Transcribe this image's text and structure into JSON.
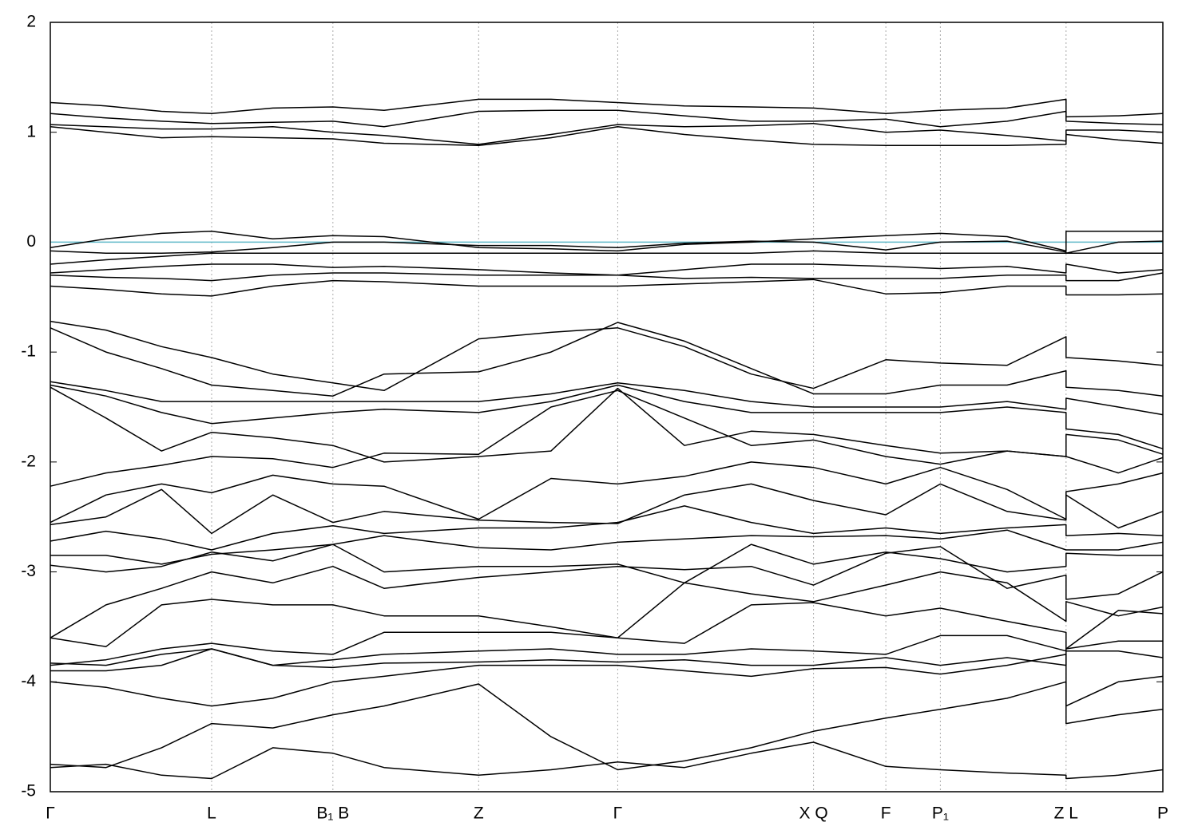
{
  "chart_data": {
    "type": "line",
    "x": [
      0,
      0.05,
      0.1,
      0.145,
      0.2,
      0.254,
      0.3,
      0.385,
      0.45,
      0.51,
      0.57,
      0.63,
      0.686,
      0.751,
      0.8,
      0.86,
      0.913,
      0.913,
      0.96,
      1
    ],
    "xlim": [
      0,
      1
    ],
    "xticks": [
      {
        "value": 0,
        "label": "Γ"
      },
      {
        "value": 0.145,
        "label": "L"
      },
      {
        "value": 0.254,
        "label": "B₁ B"
      },
      {
        "value": 0.385,
        "label": "Z"
      },
      {
        "value": 0.51,
        "label": "Γ"
      },
      {
        "value": 0.686,
        "label": "X Q"
      },
      {
        "value": 0.751,
        "label": "F"
      },
      {
        "value": 0.8,
        "label": "P₁"
      },
      {
        "value": 0.913,
        "label": "Z L"
      },
      {
        "value": 1,
        "label": "P"
      }
    ],
    "ylim": [
      -5,
      2
    ],
    "yticks": [
      -5,
      -4,
      -3,
      -2,
      -1,
      0,
      1,
      2
    ],
    "grid": "x",
    "fermi_level": 0,
    "fermi_color": "#5fb8c8",
    "color": "#000000",
    "series": [
      {
        "values": [
          1.27,
          1.24,
          1.19,
          1.17,
          1.22,
          1.23,
          1.2,
          1.3,
          1.3,
          1.27,
          1.24,
          1.23,
          1.22,
          1.17,
          1.2,
          1.22,
          1.3,
          1.14,
          1.15,
          1.17
        ]
      },
      {
        "values": [
          1.17,
          1.13,
          1.1,
          1.08,
          1.09,
          1.1,
          1.05,
          1.19,
          1.2,
          1.2,
          1.15,
          1.1,
          1.1,
          1.12,
          1.05,
          1.1,
          1.19,
          1.1,
          1.08,
          1.07
        ]
      },
      {
        "values": [
          1.07,
          1.05,
          1.03,
          1.03,
          1.05,
          1.0,
          0.97,
          0.89,
          0.98,
          1.07,
          1.05,
          1.06,
          1.08,
          1.0,
          1.02,
          0.97,
          0.92,
          1.02,
          1.02,
          1.0
        ]
      },
      {
        "values": [
          1.05,
          1.0,
          0.95,
          0.96,
          0.95,
          0.94,
          0.9,
          0.88,
          0.95,
          1.05,
          0.98,
          0.93,
          0.89,
          0.88,
          0.88,
          0.88,
          0.89,
          0.98,
          0.93,
          0.9
        ]
      },
      {
        "values": [
          -0.05,
          0.03,
          0.08,
          0.1,
          0.03,
          0.06,
          0.05,
          -0.05,
          -0.06,
          -0.08,
          -0.02,
          0.0,
          0.03,
          0.06,
          0.08,
          0.05,
          -0.08,
          0.1,
          0.1,
          0.1
        ]
      },
      {
        "values": [
          -0.08,
          -0.1,
          -0.1,
          -0.09,
          -0.05,
          0.0,
          0.0,
          -0.03,
          -0.03,
          -0.05,
          -0.01,
          0.01,
          0.0,
          -0.07,
          0.0,
          0.01,
          -0.09,
          -0.1,
          0.0,
          0.01
        ]
      },
      {
        "values": [
          -0.2,
          -0.16,
          -0.13,
          -0.1,
          -0.1,
          -0.1,
          -0.1,
          -0.1,
          -0.1,
          -0.1,
          -0.1,
          -0.1,
          -0.08,
          -0.1,
          -0.1,
          -0.1,
          -0.1,
          -0.1,
          -0.1,
          -0.1
        ]
      },
      {
        "values": [
          -0.28,
          -0.25,
          -0.22,
          -0.2,
          -0.2,
          -0.23,
          -0.22,
          -0.25,
          -0.28,
          -0.3,
          -0.25,
          -0.2,
          -0.2,
          -0.22,
          -0.24,
          -0.22,
          -0.28,
          -0.2,
          -0.28,
          -0.25
        ]
      },
      {
        "values": [
          -0.3,
          -0.32,
          -0.33,
          -0.35,
          -0.3,
          -0.28,
          -0.28,
          -0.3,
          -0.3,
          -0.3,
          -0.33,
          -0.32,
          -0.33,
          -0.33,
          -0.33,
          -0.3,
          -0.3,
          -0.35,
          -0.35,
          -0.28
        ]
      },
      {
        "values": [
          -0.4,
          -0.43,
          -0.47,
          -0.49,
          -0.4,
          -0.35,
          -0.36,
          -0.4,
          -0.4,
          -0.4,
          -0.38,
          -0.36,
          -0.34,
          -0.47,
          -0.46,
          -0.4,
          -0.4,
          -0.48,
          -0.48,
          -0.47
        ]
      },
      {
        "values": [
          -0.72,
          -0.8,
          -0.95,
          -1.05,
          -1.2,
          -1.28,
          -1.35,
          -0.88,
          -0.82,
          -0.78,
          -0.95,
          -1.2,
          -1.33,
          -1.07,
          -1.1,
          -1.12,
          -0.86,
          -1.05,
          -1.08,
          -1.12
        ]
      },
      {
        "values": [
          -0.78,
          -1.0,
          -1.15,
          -1.3,
          -1.35,
          -1.4,
          -1.2,
          -1.18,
          -1.0,
          -0.73,
          -0.9,
          -1.15,
          -1.38,
          -1.38,
          -1.3,
          -1.3,
          -1.17,
          -1.32,
          -1.35,
          -1.4
        ]
      },
      {
        "values": [
          -1.27,
          -1.35,
          -1.45,
          -1.45,
          -1.45,
          -1.45,
          -1.45,
          -1.45,
          -1.38,
          -1.28,
          -1.35,
          -1.45,
          -1.5,
          -1.5,
          -1.5,
          -1.45,
          -1.52,
          -1.42,
          -1.5,
          -1.57
        ]
      },
      {
        "values": [
          -1.3,
          -1.4,
          -1.55,
          -1.65,
          -1.6,
          -1.55,
          -1.52,
          -1.55,
          -1.45,
          -1.3,
          -1.45,
          -1.55,
          -1.55,
          -1.55,
          -1.55,
          -1.5,
          -1.55,
          -1.7,
          -1.75,
          -1.88
        ]
      },
      {
        "values": [
          -1.32,
          -1.6,
          -1.9,
          -1.73,
          -1.78,
          -1.85,
          -2.0,
          -1.95,
          -1.9,
          -1.33,
          -1.85,
          -1.72,
          -1.75,
          -1.85,
          -1.92,
          -1.9,
          -1.95,
          -1.75,
          -1.8,
          -1.93
        ]
      },
      {
        "values": [
          -2.22,
          -2.1,
          -2.03,
          -1.95,
          -1.97,
          -2.05,
          -1.92,
          -1.93,
          -1.5,
          -1.35,
          -1.6,
          -1.85,
          -1.8,
          -1.95,
          -2.02,
          -1.9,
          -1.95,
          -1.95,
          -2.1,
          -1.96
        ]
      },
      {
        "values": [
          -2.55,
          -2.3,
          -2.2,
          -2.28,
          -2.12,
          -2.2,
          -2.22,
          -2.52,
          -2.15,
          -2.2,
          -2.13,
          -2.0,
          -2.05,
          -2.2,
          -2.05,
          -2.25,
          -2.52,
          -2.27,
          -2.2,
          -2.1
        ]
      },
      {
        "values": [
          -2.57,
          -2.5,
          -2.25,
          -2.65,
          -2.3,
          -2.55,
          -2.45,
          -2.53,
          -2.55,
          -2.56,
          -2.3,
          -2.2,
          -2.35,
          -2.48,
          -2.2,
          -2.45,
          -2.53,
          -2.3,
          -2.6,
          -2.45
        ]
      },
      {
        "values": [
          -2.72,
          -2.63,
          -2.7,
          -2.8,
          -2.65,
          -2.58,
          -2.65,
          -2.6,
          -2.6,
          -2.55,
          -2.4,
          -2.55,
          -2.65,
          -2.6,
          -2.65,
          -2.6,
          -2.57,
          -2.67,
          -2.65,
          -2.67
        ]
      },
      {
        "values": [
          -2.85,
          -2.85,
          -2.93,
          -2.84,
          -2.8,
          -2.75,
          -2.67,
          -2.78,
          -2.8,
          -2.73,
          -2.7,
          -2.67,
          -2.68,
          -2.67,
          -2.7,
          -2.62,
          -2.8,
          -2.8,
          -2.8,
          -2.73
        ]
      },
      {
        "values": [
          -2.94,
          -3.0,
          -2.95,
          -2.82,
          -2.9,
          -2.75,
          -3.0,
          -2.95,
          -2.95,
          -2.93,
          -3.1,
          -2.75,
          -2.93,
          -2.82,
          -2.88,
          -3.0,
          -2.95,
          -2.83,
          -2.85,
          -2.85
        ]
      },
      {
        "values": [
          -3.6,
          -3.3,
          -3.15,
          -3.0,
          -3.1,
          -2.95,
          -3.15,
          -3.05,
          -3.0,
          -2.95,
          -2.98,
          -2.95,
          -3.12,
          -2.83,
          -2.77,
          -3.15,
          -3.03,
          -3.25,
          -3.2,
          -3.0
        ]
      },
      {
        "values": [
          -3.6,
          -3.68,
          -3.3,
          -3.25,
          -3.3,
          -3.3,
          -3.4,
          -3.4,
          -3.5,
          -3.6,
          -3.1,
          -3.2,
          -3.27,
          -3.12,
          -3.0,
          -3.1,
          -3.45,
          -3.27,
          -3.4,
          -3.32
        ]
      },
      {
        "values": [
          -3.85,
          -3.8,
          -3.7,
          -3.65,
          -3.72,
          -3.75,
          -3.55,
          -3.55,
          -3.55,
          -3.6,
          -3.65,
          -3.3,
          -3.28,
          -3.4,
          -3.33,
          -3.45,
          -3.55,
          -3.7,
          -3.35,
          -3.38
        ]
      },
      {
        "values": [
          -3.83,
          -3.85,
          -3.75,
          -3.7,
          -3.85,
          -3.8,
          -3.75,
          -3.72,
          -3.7,
          -3.75,
          -3.75,
          -3.7,
          -3.72,
          -3.75,
          -3.58,
          -3.58,
          -3.72,
          -3.7,
          -3.63,
          -3.63
        ]
      },
      {
        "values": [
          -3.9,
          -3.9,
          -3.85,
          -3.7,
          -3.85,
          -3.87,
          -3.83,
          -3.82,
          -3.8,
          -3.82,
          -3.8,
          -3.85,
          -3.85,
          -3.78,
          -3.85,
          -3.78,
          -3.85,
          -3.72,
          -3.72,
          -3.78
        ]
      },
      {
        "values": [
          -4.0,
          -4.05,
          -4.15,
          -4.22,
          -4.15,
          -4.0,
          -3.95,
          -3.85,
          -3.85,
          -3.85,
          -3.9,
          -3.95,
          -3.88,
          -3.87,
          -3.93,
          -3.85,
          -3.75,
          -4.22,
          -4.0,
          -3.95
        ]
      },
      {
        "values": [
          -4.75,
          -4.78,
          -4.6,
          -4.38,
          -4.42,
          -4.3,
          -4.22,
          -4.02,
          -4.5,
          -4.8,
          -4.72,
          -4.6,
          -4.45,
          -4.33,
          -4.25,
          -4.15,
          -4.0,
          -4.38,
          -4.3,
          -4.25
        ]
      },
      {
        "values": [
          -4.78,
          -4.75,
          -4.85,
          -4.88,
          -4.6,
          -4.65,
          -4.78,
          -4.85,
          -4.8,
          -4.73,
          -4.78,
          -4.65,
          -4.55,
          -4.77,
          -4.8,
          -4.83,
          -4.85,
          -4.88,
          -4.85,
          -4.8
        ]
      }
    ]
  }
}
